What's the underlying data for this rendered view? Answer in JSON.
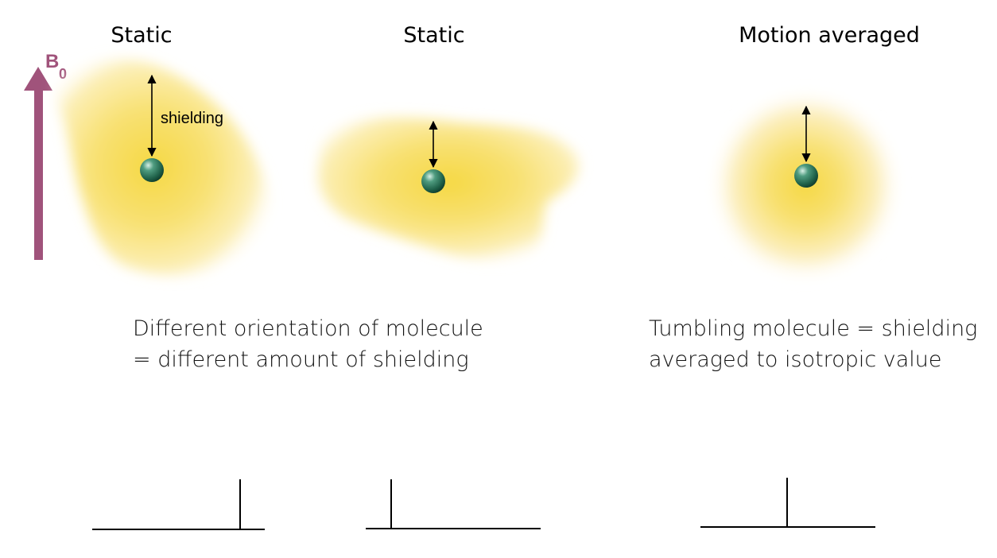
{
  "titles": {
    "panel1": "Static",
    "panel2": "Static",
    "panel3": "Motion averaged"
  },
  "field": {
    "symbol": "B",
    "subscript": "0",
    "color": "#a0537b"
  },
  "labels": {
    "shielding": "shielding"
  },
  "captions": {
    "static_line1": "Different orientation of molecule",
    "static_line2": "= different amount of shielding",
    "averaged_line1": "Tumbling molecule = shielding",
    "averaged_line2": "averaged to isotropic value"
  },
  "colors": {
    "cloud": "#f5d84a",
    "nucleus": "#2a7a5e",
    "line": "#000000"
  }
}
